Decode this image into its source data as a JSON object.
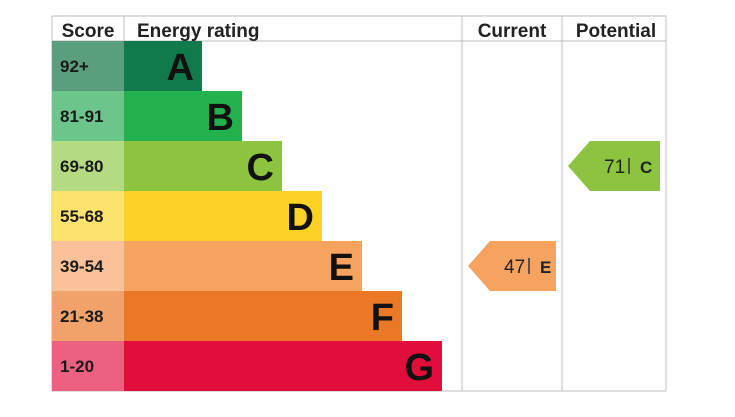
{
  "chart_data": {
    "type": "bar",
    "headers": {
      "score": "Score",
      "rating": "Energy rating",
      "current": "Current",
      "potential": "Potential"
    },
    "bands": [
      {
        "score": "92+",
        "letter": "A",
        "color": "#117a4c",
        "score_color": "#5a9e7e"
      },
      {
        "score": "81-91",
        "letter": "B",
        "color": "#22b14c",
        "score_color": "#6cc58a"
      },
      {
        "score": "69-80",
        "letter": "C",
        "color": "#8cc43f",
        "score_color": "#b3db82"
      },
      {
        "score": "55-68",
        "letter": "D",
        "color": "#fdd225",
        "score_color": "#fde26e"
      },
      {
        "score": "39-54",
        "letter": "E",
        "color": "#f6a35f",
        "score_color": "#f9c199"
      },
      {
        "score": "21-38",
        "letter": "F",
        "color": "#ea7826",
        "score_color": "#f0a26a"
      },
      {
        "score": "1-20",
        "letter": "G",
        "color": "#e10d3a",
        "score_color": "#ec6080"
      }
    ],
    "current": {
      "value": "47",
      "letter": "E",
      "band_index": 4,
      "color": "#f6a35f"
    },
    "potential": {
      "value": "71",
      "letter": "C",
      "band_index": 2,
      "color": "#8cc43f"
    }
  }
}
